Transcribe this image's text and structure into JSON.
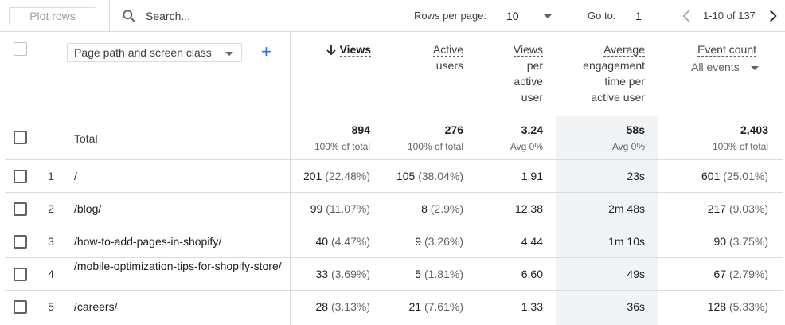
{
  "toolbar": {
    "plot_rows_label": "Plot rows",
    "search_placeholder": "Search...",
    "rows_per_page_label": "Rows per page:",
    "rows_per_page_value": "10",
    "goto_label": "Go to:",
    "goto_value": "1",
    "range_text": "1-10 of 137"
  },
  "dimension": {
    "label": "Page path and screen class",
    "add_icon": "+"
  },
  "columns": {
    "views": "Views",
    "active_users": [
      "Active",
      "users"
    ],
    "views_per_user": [
      "Views",
      "per",
      "active",
      "user"
    ],
    "avg_engagement": [
      "Average",
      "engagement",
      "time per",
      "active user"
    ],
    "event_count": "Event count",
    "event_filter": "All events"
  },
  "total": {
    "label": "Total",
    "views": "894",
    "views_sub": "100% of total",
    "active_users": "276",
    "active_users_sub": "100% of total",
    "views_per_user": "3.24",
    "views_per_user_sub": "Avg 0%",
    "avg_engagement": "58s",
    "avg_engagement_sub": "Avg 0%",
    "event_count": "2,403",
    "event_count_sub": "100% of total"
  },
  "rows": [
    {
      "num": "1",
      "path": "/",
      "views": "201",
      "views_pct": "(22.48%)",
      "users": "105",
      "users_pct": "(38.04%)",
      "vpu": "1.91",
      "eng": "23s",
      "events": "601",
      "events_pct": "(25.01%)"
    },
    {
      "num": "2",
      "path": "/blog/",
      "views": "99",
      "views_pct": "(11.07%)",
      "users": "8",
      "users_pct": "(2.9%)",
      "vpu": "12.38",
      "eng": "2m 48s",
      "events": "217",
      "events_pct": "(9.03%)"
    },
    {
      "num": "3",
      "path": "/how-to-add-pages-in-shopify/",
      "views": "40",
      "views_pct": "(4.47%)",
      "users": "9",
      "users_pct": "(3.26%)",
      "vpu": "4.44",
      "eng": "1m 10s",
      "events": "90",
      "events_pct": "(3.75%)"
    },
    {
      "num": "4",
      "path": "/mobile-optimization-tips-for-shopify-store/",
      "views": "33",
      "views_pct": "(3.69%)",
      "users": "5",
      "users_pct": "(1.81%)",
      "vpu": "6.60",
      "eng": "49s",
      "events": "67",
      "events_pct": "(2.79%)"
    },
    {
      "num": "5",
      "path": "/careers/",
      "views": "28",
      "views_pct": "(3.13%)",
      "users": "21",
      "users_pct": "(7.61%)",
      "vpu": "1.33",
      "eng": "36s",
      "events": "128",
      "events_pct": "(5.33%)"
    }
  ],
  "colors": {
    "accent": "#1a73e8",
    "highlight_column": "#f1f3f4",
    "divider": "#dadce0"
  }
}
